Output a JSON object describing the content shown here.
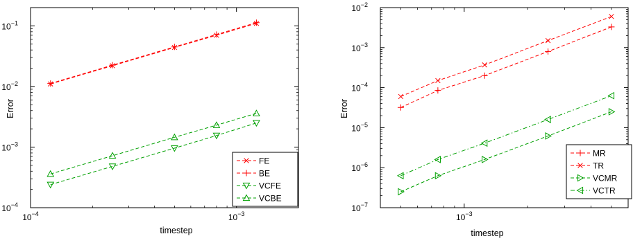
{
  "chart_data": [
    {
      "type": "scatter",
      "xlabel": "timestep",
      "ylabel": "Error",
      "xscale": "log",
      "yscale": "log",
      "xlim": [
        0.0001,
        0.002
      ],
      "ylim": [
        0.0001,
        0.2
      ],
      "x_ticks": [
        {
          "value": 0.0001,
          "base": "10",
          "exp": "−4"
        },
        {
          "value": 0.001,
          "base": "10",
          "exp": "−3"
        }
      ],
      "y_ticks": [
        {
          "value": 0.0001,
          "base": "10",
          "exp": "−4"
        },
        {
          "value": 0.001,
          "base": "10",
          "exp": "−3"
        },
        {
          "value": 0.01,
          "base": "10",
          "exp": "−2"
        },
        {
          "value": 0.1,
          "base": "10",
          "exp": "−1"
        }
      ],
      "grid": false,
      "legend_position": "bottom-right",
      "x": [
        0.000125,
        0.00025,
        0.0005,
        0.0008,
        0.00125
      ],
      "series": [
        {
          "name": "FE",
          "marker": "x",
          "color": "#ff0000",
          "dash": "dashed",
          "values": [
            0.011,
            0.022,
            0.044,
            0.07,
            0.11
          ]
        },
        {
          "name": "BE",
          "marker": "plus",
          "color": "#ff0000",
          "dash": "dashed",
          "values": [
            0.0112,
            0.0225,
            0.045,
            0.072,
            0.113
          ]
        },
        {
          "name": "VCFE",
          "marker": "triangle-down",
          "color": "#00a000",
          "dash": "dashed",
          "values": [
            0.00024,
            0.00048,
            0.00096,
            0.00155,
            0.0025
          ]
        },
        {
          "name": "VCBE",
          "marker": "triangle-up",
          "color": "#00a000",
          "dash": "dashed",
          "values": [
            0.00036,
            0.00072,
            0.00145,
            0.0023,
            0.0036
          ]
        }
      ]
    },
    {
      "type": "scatter",
      "xlabel": "timestep",
      "ylabel": "Error",
      "xscale": "log",
      "yscale": "log",
      "xlim": [
        0.0004,
        0.006
      ],
      "ylim": [
        1e-07,
        0.01
      ],
      "x_ticks": [
        {
          "value": 0.001,
          "base": "10",
          "exp": "−3"
        }
      ],
      "y_ticks": [
        {
          "value": 1e-07,
          "base": "10",
          "exp": "−7"
        },
        {
          "value": 1e-06,
          "base": "10",
          "exp": "−6"
        },
        {
          "value": 1e-05,
          "base": "10",
          "exp": "−5"
        },
        {
          "value": 0.0001,
          "base": "10",
          "exp": "−4"
        },
        {
          "value": 0.001,
          "base": "10",
          "exp": "−3"
        },
        {
          "value": 0.01,
          "base": "10",
          "exp": "−2"
        }
      ],
      "grid": false,
      "legend_position": "bottom-right",
      "x": [
        0.0005,
        0.00075,
        0.00125,
        0.0025,
        0.005
      ],
      "series": [
        {
          "name": "MR",
          "marker": "plus",
          "color": "#ff0000",
          "dash": "dashed",
          "values": [
            3.2e-05,
            8.5e-05,
            0.0002,
            0.0008,
            0.0033
          ]
        },
        {
          "name": "TR",
          "marker": "x",
          "color": "#ff0000",
          "dash": "dashed",
          "values": [
            6e-05,
            0.00015,
            0.00037,
            0.0015,
            0.006
          ]
        },
        {
          "name": "VCMR",
          "marker": "triangle-right",
          "color": "#00a000",
          "dash": "dashed",
          "values": [
            2.5e-07,
            6.3e-07,
            1.6e-06,
            6.2e-06,
            2.5e-05
          ]
        },
        {
          "name": "VCTR",
          "marker": "triangle-left",
          "color": "#00a000",
          "dash": "dashdot",
          "values": [
            6.3e-07,
            1.6e-06,
            4.1e-06,
            1.6e-05,
            6.3e-05
          ]
        }
      ]
    }
  ]
}
